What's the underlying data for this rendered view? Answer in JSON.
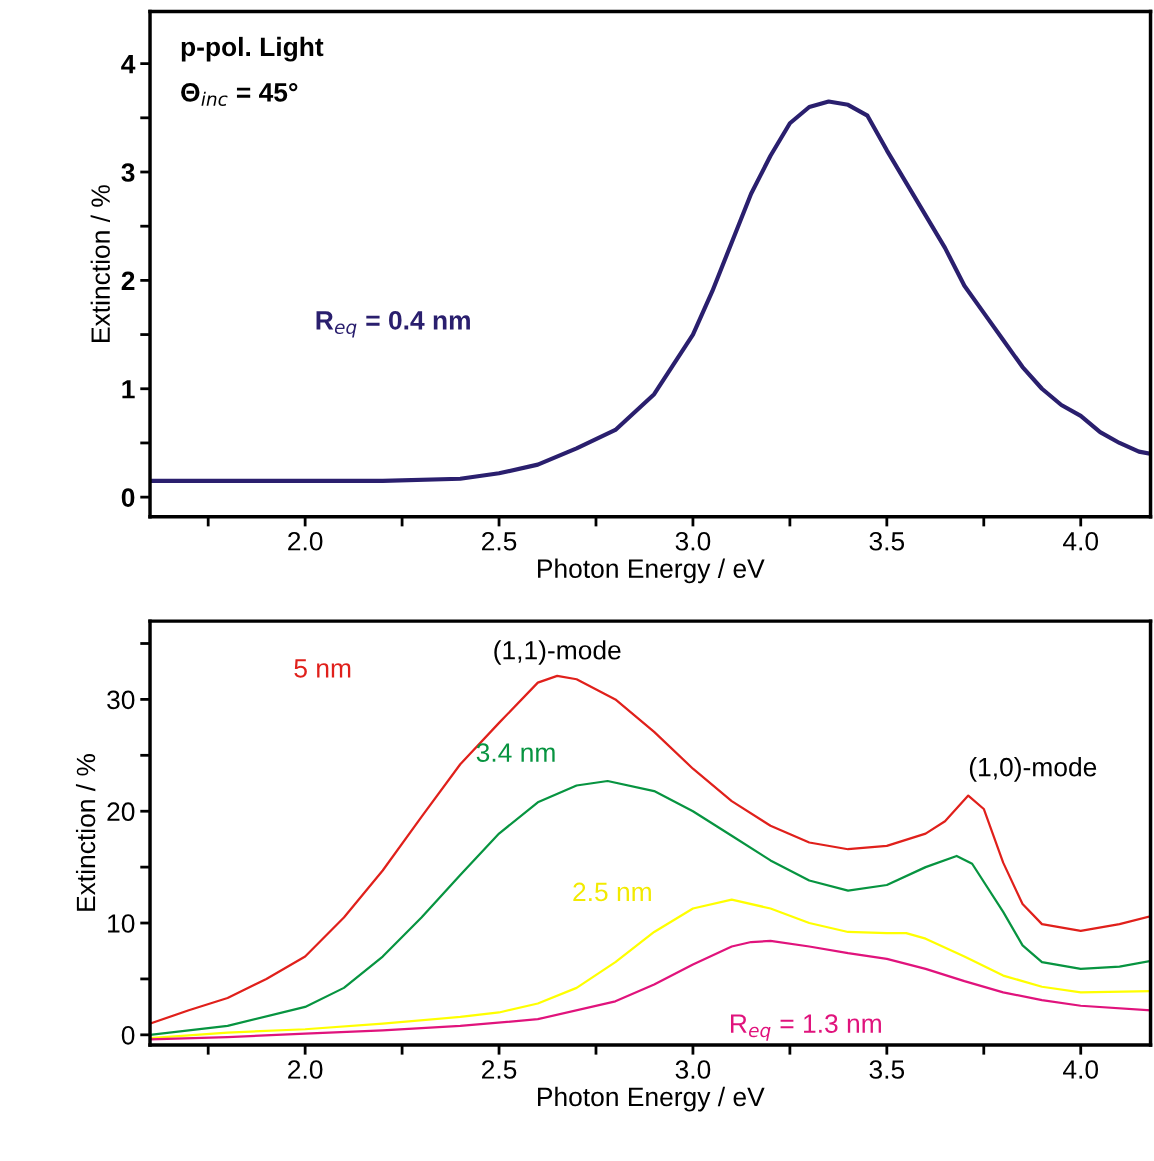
{
  "chart_data": [
    {
      "type": "line",
      "xlabel": "Photon Energy / eV",
      "ylabel": "Extinction / %",
      "xlim": [
        1.6,
        4.18
      ],
      "ylim": [
        -0.18,
        4.48
      ],
      "xticks": [
        {
          "value": 1.75,
          "label": null
        },
        "2.0",
        {
          "value": 2.25,
          "label": null
        },
        {
          "value": 2.5,
          "label": "2.5"
        },
        {
          "value": 2.75,
          "label": null
        },
        {
          "value": 3.0,
          "label": "3.0"
        },
        {
          "value": 3.25,
          "label": null
        },
        {
          "value": 3.5,
          "label": "3.5"
        },
        {
          "value": 3.75,
          "label": null
        },
        {
          "value": 4.0,
          "label": "4.0"
        }
      ],
      "yticks": [
        0,
        {
          "value": 0.5,
          "label": null
        },
        1,
        {
          "value": 1.5,
          "label": null
        },
        2,
        {
          "value": 2.5,
          "label": null
        },
        3,
        {
          "value": 3.5,
          "label": null
        },
        4
      ],
      "grid": false,
      "legend": false,
      "annotations": [
        "p-pol. Light",
        "Θ$_{inc}$ = 45°"
      ],
      "series": [
        {
          "name": "R$_{eq}$ = 0.4 nm",
          "color": "#2a1f6e",
          "x": [
            1.6,
            1.8,
            2.0,
            2.2,
            2.4,
            2.5,
            2.6,
            2.7,
            2.8,
            2.9,
            3.0,
            3.05,
            3.1,
            3.15,
            3.2,
            3.25,
            3.3,
            3.35,
            3.4,
            3.45,
            3.5,
            3.55,
            3.6,
            3.65,
            3.7,
            3.75,
            3.8,
            3.85,
            3.9,
            3.95,
            4.0,
            4.05,
            4.1,
            4.15,
            4.18
          ],
          "values": [
            0.15,
            0.15,
            0.15,
            0.15,
            0.17,
            0.22,
            0.3,
            0.45,
            0.62,
            0.95,
            1.5,
            1.9,
            2.35,
            2.8,
            3.15,
            3.45,
            3.6,
            3.65,
            3.62,
            3.52,
            3.2,
            2.9,
            2.6,
            2.3,
            1.95,
            1.7,
            1.45,
            1.2,
            1.0,
            0.85,
            0.75,
            0.6,
            0.5,
            0.42,
            0.4
          ]
        }
      ]
    },
    {
      "type": "line",
      "xlabel": "Photon Energy / eV",
      "ylabel": "Extinction / %",
      "xlim": [
        1.6,
        4.18
      ],
      "ylim": [
        -0.9,
        37
      ],
      "xticks": [
        {
          "value": 1.75,
          "label": null
        },
        "2.0",
        {
          "value": 2.25,
          "label": null
        },
        {
          "value": 2.5,
          "label": "2.5"
        },
        {
          "value": 2.75,
          "label": null
        },
        {
          "value": 3.0,
          "label": "3.0"
        },
        {
          "value": 3.25,
          "label": null
        },
        {
          "value": 3.5,
          "label": "3.5"
        },
        {
          "value": 3.75,
          "label": null
        },
        {
          "value": 4.0,
          "label": "4.0"
        }
      ],
      "yticks": [
        0,
        {
          "value": 5,
          "label": null
        },
        10,
        {
          "value": 15,
          "label": null
        },
        20,
        {
          "value": 25,
          "label": null
        },
        30,
        {
          "value": 35,
          "label": null
        }
      ],
      "grid": false,
      "legend": false,
      "annotations": [
        {
          "text": "(1,1)-mode",
          "x": 2.65,
          "y": 32.1
        },
        {
          "text": "(1,0)-mode",
          "x": 3.71,
          "y": 21.4
        }
      ],
      "series": [
        {
          "name": "5 nm",
          "color": "#e0201b",
          "x": [
            1.6,
            1.7,
            1.8,
            1.9,
            2.0,
            2.1,
            2.2,
            2.3,
            2.4,
            2.5,
            2.6,
            2.65,
            2.7,
            2.8,
            2.9,
            3.0,
            3.1,
            3.2,
            3.3,
            3.4,
            3.5,
            3.6,
            3.65,
            3.71,
            3.75,
            3.8,
            3.85,
            3.9,
            4.0,
            4.1,
            4.18
          ],
          "values": [
            1.0,
            2.2,
            3.3,
            5.0,
            7.0,
            10.5,
            14.7,
            19.5,
            24.2,
            27.9,
            31.5,
            32.1,
            31.8,
            30.0,
            27.1,
            23.8,
            20.9,
            18.7,
            17.2,
            16.6,
            16.9,
            18.0,
            19.1,
            21.4,
            20.2,
            15.4,
            11.7,
            9.9,
            9.3,
            9.9,
            10.6
          ]
        },
        {
          "name": "3.4 nm",
          "color": "#079440",
          "x": [
            1.6,
            1.8,
            2.0,
            2.1,
            2.2,
            2.3,
            2.4,
            2.5,
            2.6,
            2.7,
            2.78,
            2.9,
            3.0,
            3.1,
            3.2,
            3.3,
            3.4,
            3.5,
            3.6,
            3.68,
            3.72,
            3.8,
            3.85,
            3.9,
            4.0,
            4.1,
            4.18
          ],
          "values": [
            0.0,
            0.8,
            2.5,
            4.2,
            7.0,
            10.5,
            14.3,
            18.0,
            20.8,
            22.3,
            22.7,
            21.8,
            20.0,
            17.8,
            15.6,
            13.8,
            12.9,
            13.4,
            15.0,
            16.0,
            15.3,
            11.0,
            8.0,
            6.5,
            5.9,
            6.1,
            6.6
          ]
        },
        {
          "name": "2.5 nm",
          "color": "#ffff00",
          "x": [
            1.6,
            1.8,
            2.0,
            2.2,
            2.4,
            2.5,
            2.6,
            2.7,
            2.8,
            2.9,
            3.0,
            3.1,
            3.2,
            3.3,
            3.4,
            3.5,
            3.55,
            3.6,
            3.7,
            3.8,
            3.9,
            4.0,
            4.18
          ],
          "values": [
            -0.3,
            0.2,
            0.5,
            1.0,
            1.6,
            2.0,
            2.8,
            4.2,
            6.5,
            9.2,
            11.3,
            12.1,
            11.3,
            10.0,
            9.2,
            9.1,
            9.1,
            8.6,
            7.0,
            5.3,
            4.3,
            3.8,
            3.9
          ]
        },
        {
          "name": "R$_{eq}$ = 1.3 nm",
          "color": "#e0137c",
          "x": [
            1.6,
            1.8,
            2.0,
            2.2,
            2.4,
            2.6,
            2.8,
            2.9,
            3.0,
            3.1,
            3.15,
            3.2,
            3.3,
            3.4,
            3.5,
            3.6,
            3.7,
            3.8,
            3.9,
            4.0,
            4.18
          ],
          "values": [
            -0.4,
            -0.2,
            0.1,
            0.4,
            0.8,
            1.4,
            3.0,
            4.5,
            6.3,
            7.9,
            8.3,
            8.4,
            7.9,
            7.3,
            6.8,
            5.9,
            4.8,
            3.8,
            3.1,
            2.6,
            2.2
          ]
        }
      ]
    }
  ]
}
